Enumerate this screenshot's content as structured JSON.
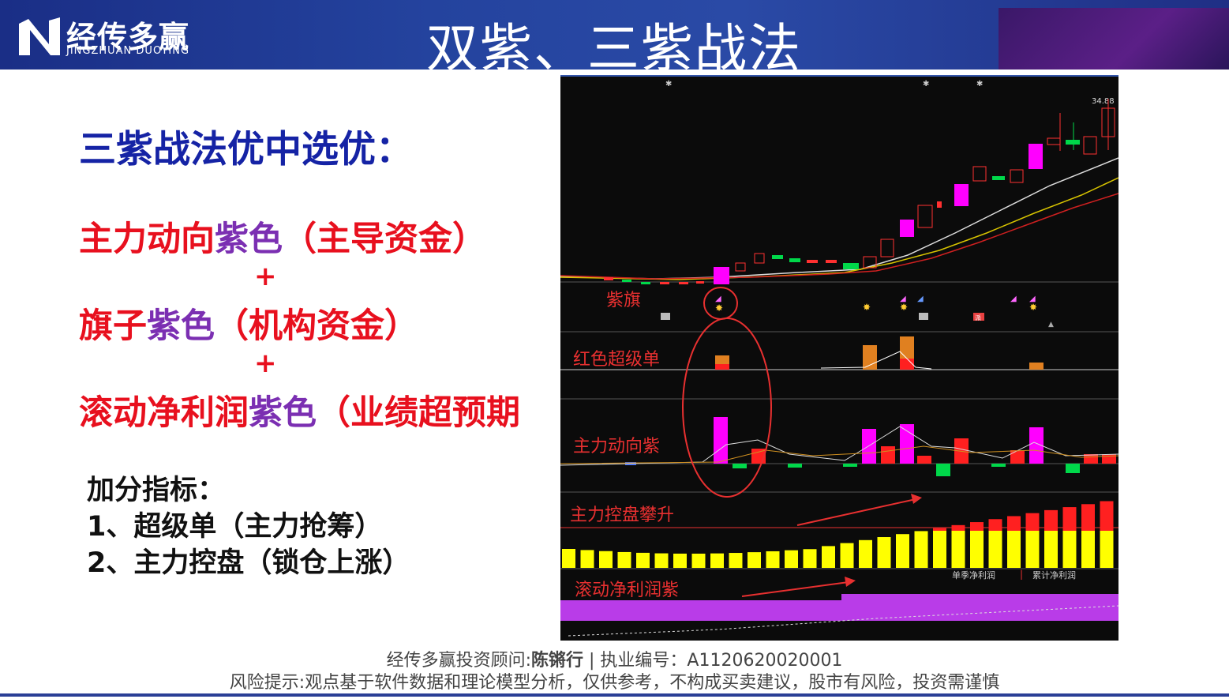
{
  "header": {
    "logo_cn": "经传多赢",
    "logo_en": "JINGZHUAN DUOYING",
    "title": "双紫、三紫战法"
  },
  "main": {
    "heading": "三紫战法优中选优：",
    "line1_red": "主力动向",
    "line1_purple": "紫色",
    "line1_rest": "（主导资金）",
    "plus1": "+",
    "line2_red": "旗子",
    "line2_purple": "紫色",
    "line2_rest": "（机构资金）",
    "plus2": "+",
    "line3_red": "滚动净利润",
    "line3_purple": "紫色",
    "line3_rest": "（业绩超预期",
    "bonus_title": "加分指标：",
    "bonus_1": "1、超级单（主力抢筹）",
    "bonus_2": "2、主力控盘（锁仓上涨）"
  },
  "chart": {
    "price_label": "34.88",
    "panel_labels": {
      "flag": "紫旗",
      "super_order": "红色超级单",
      "main_force": "主力动向紫",
      "control": "主力控盘攀升",
      "profit": "滚动净利润紫"
    },
    "legend_quarter": "单季净利润",
    "legend_cumulative": "累计净利润",
    "tag_pai": "派"
  },
  "footer": {
    "advisor_prefix": "经传多赢投资顾问:",
    "advisor_name": "陈锵行",
    "advisor_sep": "|",
    "license": "执业编号：A1120620020001",
    "risk": "风险提示:观点基于软件数据和理论模型分析，仅供参考，不构成买卖建议，股市有风险，投资需谨慎"
  },
  "colors": {
    "header_blue": "#24439e",
    "red": "#e8101e",
    "purple": "#7b2fb2",
    "heading_blue": "#1523a5",
    "magenta": "#ff00ff",
    "yellow": "#ffff00",
    "green": "#00d84a"
  }
}
